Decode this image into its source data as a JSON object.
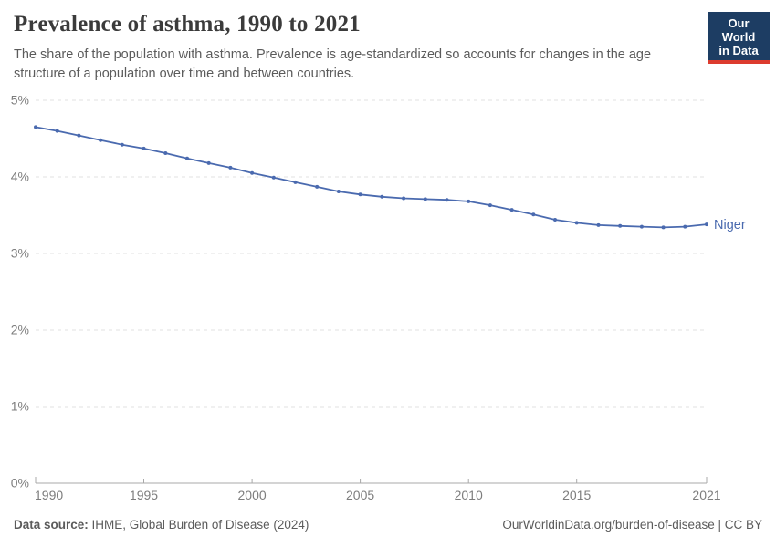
{
  "header": {
    "title": "Prevalence of asthma, 1990 to 2021",
    "subtitle": "The share of the population with asthma. Prevalence is age-standardized so accounts for changes in the age structure of a population over time and between countries."
  },
  "logo": {
    "line1": "Our World",
    "line2": "in Data",
    "bg_color": "#1d3d63",
    "bar_color": "#dc3b2e"
  },
  "chart_data": {
    "type": "line",
    "title": "Prevalence of asthma, 1990 to 2021",
    "xlabel": "",
    "ylabel": "",
    "xlim": [
      1990,
      2021
    ],
    "ylim": [
      0,
      5
    ],
    "grid": "horizontal-dashed",
    "legend_position": "line-end-label",
    "x": [
      1990,
      1991,
      1992,
      1993,
      1994,
      1995,
      1996,
      1997,
      1998,
      1999,
      2000,
      2001,
      2002,
      2003,
      2004,
      2005,
      2006,
      2007,
      2008,
      2009,
      2010,
      2011,
      2012,
      2013,
      2014,
      2015,
      2016,
      2017,
      2018,
      2019,
      2020,
      2021
    ],
    "series": [
      {
        "name": "Niger",
        "color": "#4a6aaf",
        "values": [
          4.65,
          4.6,
          4.54,
          4.48,
          4.42,
          4.37,
          4.31,
          4.24,
          4.18,
          4.12,
          4.05,
          3.99,
          3.93,
          3.87,
          3.81,
          3.77,
          3.74,
          3.72,
          3.71,
          3.7,
          3.68,
          3.63,
          3.57,
          3.51,
          3.44,
          3.4,
          3.37,
          3.36,
          3.35,
          3.34,
          3.35,
          3.38
        ]
      }
    ],
    "yticks": [
      {
        "value": 0,
        "label": "0%"
      },
      {
        "value": 1,
        "label": "1%"
      },
      {
        "value": 2,
        "label": "2%"
      },
      {
        "value": 3,
        "label": "3%"
      },
      {
        "value": 4,
        "label": "4%"
      },
      {
        "value": 5,
        "label": "5%"
      }
    ],
    "xticks": [
      {
        "value": 1990,
        "label": "1990"
      },
      {
        "value": 1995,
        "label": "1995"
      },
      {
        "value": 2000,
        "label": "2000"
      },
      {
        "value": 2005,
        "label": "2005"
      },
      {
        "value": 2010,
        "label": "2010"
      },
      {
        "value": 2015,
        "label": "2015"
      },
      {
        "value": 2021,
        "label": "2021"
      }
    ],
    "axis_color": "#a8a8a8",
    "gridline_color": "#e2e2e2",
    "tick_label_color": "#7d7d7d"
  },
  "footer": {
    "source_label": "Data source:",
    "source_text": "IHME, Global Burden of Disease (2024)",
    "license_text": "OurWorldinData.org/burden-of-disease | CC BY"
  }
}
